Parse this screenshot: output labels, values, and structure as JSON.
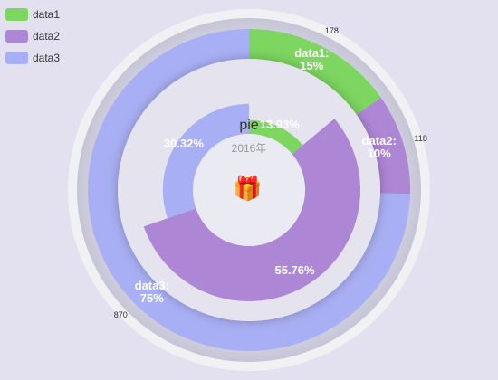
{
  "legend": [
    {
      "label": "data1",
      "color": "#7cd65f"
    },
    {
      "label": "data2",
      "color": "#ad86d6"
    },
    {
      "label": "data3",
      "color": "#a9aff4"
    }
  ],
  "center": {
    "title": "pie",
    "subtitle": "2016年",
    "icon": "gift-icon"
  },
  "chart_data": [
    {
      "type": "pie",
      "name": "outer-ring",
      "categories": [
        "data1",
        "data2",
        "data3"
      ],
      "values": [
        178,
        118,
        870
      ],
      "labels": [
        "data1:\n15%",
        "data2:\n10%",
        "data3:\n75%"
      ],
      "value_labels": [
        "178",
        "118",
        "870"
      ],
      "colors": [
        "#7cd65f",
        "#ad86d6",
        "#a9aff4"
      ]
    },
    {
      "type": "pie",
      "name": "inner-ring",
      "categories": [
        "data1",
        "data2",
        "data3"
      ],
      "values": [
        13.93,
        55.76,
        30.32
      ],
      "labels": [
        "13.93%",
        "55.76%",
        "30.32%"
      ],
      "colors": [
        "#7cd65f",
        "#ad86d6",
        "#a9aff4"
      ]
    }
  ]
}
